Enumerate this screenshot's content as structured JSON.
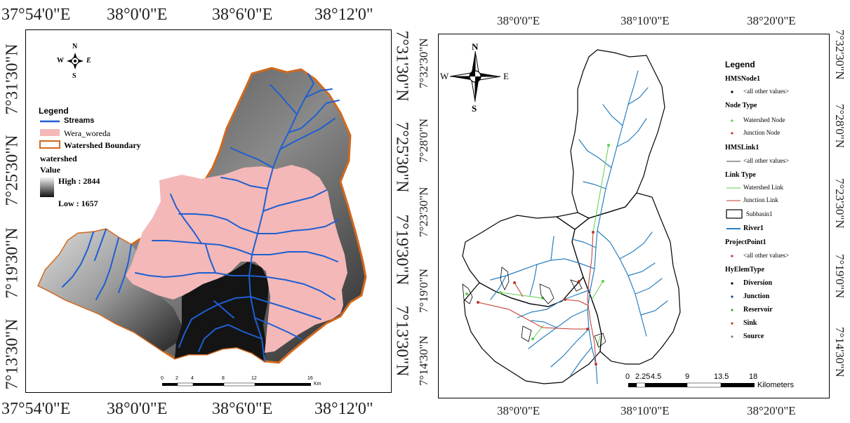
{
  "left_map": {
    "top_coords": [
      "37°54'0\"E",
      "38°0'0\"E",
      "38°6'0\"E",
      "38°12'0\""
    ],
    "bottom_coords": [
      "37°54'0\"E",
      "38°0'0\"E",
      "38°6'0\"E",
      "38°12'0\""
    ],
    "left_coords": [
      "7°31'30\"N",
      "7°25'30\"N",
      "7°19'30\"N",
      "7°13'30\"N"
    ],
    "right_coords": [
      "7°31'30\"N",
      "7°25'30\"N",
      "7°19'30\"N",
      "7°13'30\"N"
    ],
    "compass": {
      "n": "N",
      "s": "S",
      "e": "E",
      "w": "W"
    },
    "legend": {
      "title": "Legend",
      "items": [
        "Streams",
        "Wera_woreda",
        "Watershed Boundary"
      ],
      "raster_title": "watershed",
      "value_label": "Value",
      "high": "High : 2844",
      "low": "Low : 1657"
    },
    "scale": {
      "ticks": [
        "0",
        "2",
        "4",
        "8",
        "12",
        "16"
      ],
      "unit": "Km"
    },
    "colors": {
      "streams": "#1e5fd1",
      "woreda": "#f4b8b8",
      "boundary": "#d2691e"
    }
  },
  "right_map": {
    "top_coords": [
      "38°0'0\"E",
      "38°10'0\"E",
      "38°20'0\"E"
    ],
    "bottom_coords": [
      "38°0'0\"E",
      "38°10'0\"E",
      "38°20'0\"E"
    ],
    "left_coords": [
      "7°32'30\"N",
      "7°28'0\"N",
      "7°23'30\"N",
      "7°19'0\"N",
      "7°14'30\"N"
    ],
    "right_coords": [
      "7°32'30\"N",
      "7°28'0\"N",
      "7°23'30\"N",
      "7°19'0\"N",
      "7°14'30\"N"
    ],
    "compass": {
      "n": "N",
      "s": "S",
      "e": "E",
      "w": "W"
    },
    "legend": {
      "title": "Legend",
      "groups": [
        {
          "heading": "HMSNode1",
          "items": [
            "<all other values>"
          ]
        },
        {
          "heading": "Node Type",
          "items": [
            "Watershed Node",
            "Junction Node"
          ]
        },
        {
          "heading": "HMSLink1",
          "items": [
            "<all other values>"
          ]
        },
        {
          "heading": "Link Type",
          "items": [
            "Watershed Link",
            "Junction Link"
          ]
        },
        {
          "heading": "",
          "items": [
            "Subbasin1",
            "River1"
          ]
        },
        {
          "heading": "ProjectPoint1",
          "items": [
            "<all other values>"
          ]
        },
        {
          "heading": "HyElemType",
          "items": [
            "Diversion",
            "Junction",
            "Reservoir",
            "Sink",
            "Source"
          ]
        }
      ]
    },
    "scale": {
      "ticks": [
        "0",
        "2.25",
        "4.5",
        "9",
        "13.5",
        "18"
      ],
      "unit": "Kilometers"
    },
    "colors": {
      "river": "#2a7fc0",
      "watershed_link": "#5ccf4e",
      "junction_link": "#c0392b",
      "subbasin": "#000000"
    }
  }
}
